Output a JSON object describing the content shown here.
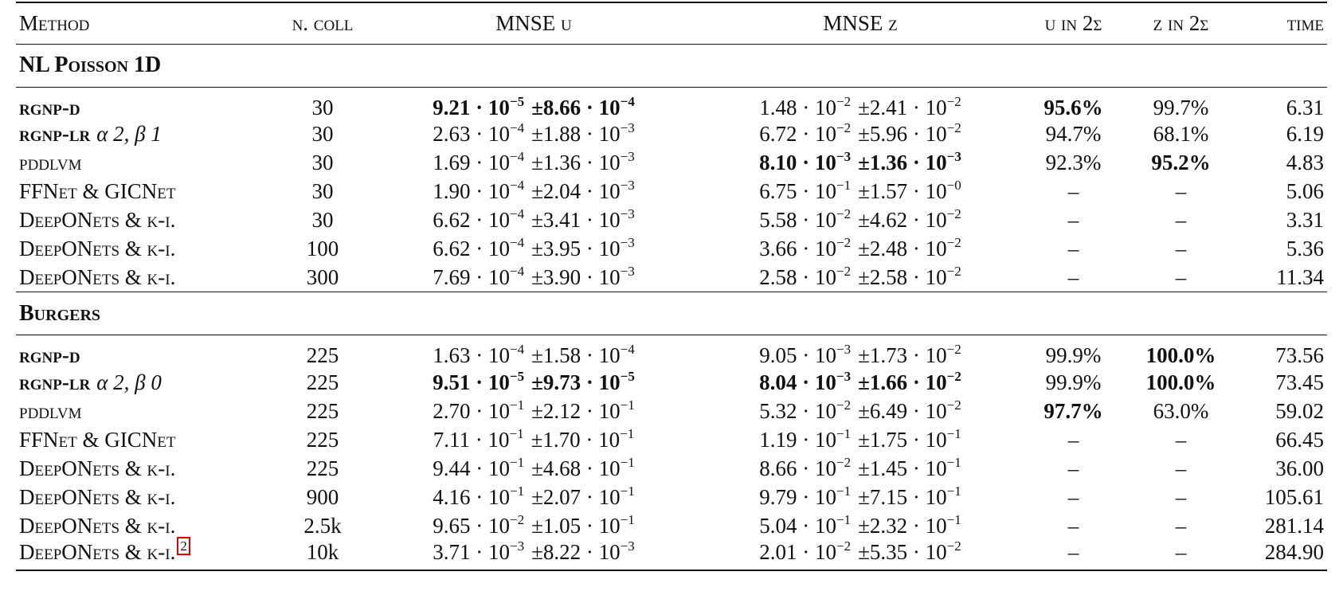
{
  "table": {
    "header": [
      "Method",
      "n. coll",
      "MNSE u",
      "MNSE z",
      "u in 2σ",
      "z in 2σ",
      "time"
    ],
    "sections": [
      {
        "title": "NL Poisson 1D",
        "rows": [
          {
            "method": "rgnp-d",
            "n_coll": "30",
            "mnse_u": [
              "9.21 · 10",
              "−5",
              "±8.66 · 10",
              "−4"
            ],
            "mnse_z": [
              "1.48 · 10",
              "−2",
              "±2.41 · 10",
              "−2"
            ],
            "u_2sigma": "95.6%",
            "z_2sigma": "99.7%",
            "time": "6.31",
            "bold": [
              "method",
              "mnse_u",
              "u_2sigma"
            ]
          },
          {
            "method": "rgnp-lr",
            "params": "α 2, β 1",
            "n_coll": "30",
            "mnse_u": [
              "2.63 · 10",
              "−4",
              "±1.88 · 10",
              "−3"
            ],
            "mnse_z": [
              "6.72 · 10",
              "−2",
              "±5.96 · 10",
              "−2"
            ],
            "u_2sigma": "94.7%",
            "z_2sigma": "68.1%",
            "time": "6.19",
            "bold": [
              "method"
            ]
          },
          {
            "method": "pddlvm",
            "n_coll": "30",
            "mnse_u": [
              "1.69 · 10",
              "−4",
              "±1.36 · 10",
              "−3"
            ],
            "mnse_z": [
              "8.10 · 10",
              "−3",
              "±1.36 · 10",
              "−3"
            ],
            "u_2sigma": "92.3%",
            "z_2sigma": "95.2%",
            "time": "4.83",
            "bold": [
              "mnse_z",
              "z_2sigma"
            ]
          },
          {
            "method": "FFNet & GICNet",
            "n_coll": "30",
            "mnse_u": [
              "1.90 · 10",
              "−4",
              "±2.04 · 10",
              "−3"
            ],
            "mnse_z": [
              "6.75 · 10",
              "−1",
              "±1.57 · 10",
              "−0"
            ],
            "u_2sigma": "–",
            "z_2sigma": "–",
            "time": "5.06",
            "bold": []
          },
          {
            "method": "DeepONets & k-i.",
            "n_coll": "30",
            "mnse_u": [
              "6.62 · 10",
              "−4",
              "±3.41 · 10",
              "−3"
            ],
            "mnse_z": [
              "5.58 · 10",
              "−2",
              "±4.62 · 10",
              "−2"
            ],
            "u_2sigma": "–",
            "z_2sigma": "–",
            "time": "3.31",
            "bold": []
          },
          {
            "method": "DeepONets & k-i.",
            "n_coll": "100",
            "mnse_u": [
              "6.62 · 10",
              "−4",
              "±3.95 · 10",
              "−3"
            ],
            "mnse_z": [
              "3.66 · 10",
              "−2",
              "±2.48 · 10",
              "−2"
            ],
            "u_2sigma": "–",
            "z_2sigma": "–",
            "time": "5.36",
            "bold": []
          },
          {
            "method": "DeepONets & k-i.",
            "n_coll": "300",
            "mnse_u": [
              "7.69 · 10",
              "−4",
              "±3.90 · 10",
              "−3"
            ],
            "mnse_z": [
              "2.58 · 10",
              "−2",
              "±2.58 · 10",
              "−2"
            ],
            "u_2sigma": "–",
            "z_2sigma": "–",
            "time": "11.34",
            "bold": []
          }
        ]
      },
      {
        "title": "Burgers",
        "rows": [
          {
            "method": "rgnp-d",
            "n_coll": "225",
            "mnse_u": [
              "1.63 · 10",
              "−4",
              "±1.58 · 10",
              "−4"
            ],
            "mnse_z": [
              "9.05 · 10",
              "−3",
              "±1.73 · 10",
              "−2"
            ],
            "u_2sigma": "99.9%",
            "z_2sigma": "100.0%",
            "time": "73.56",
            "bold": [
              "method",
              "z_2sigma"
            ]
          },
          {
            "method": "rgnp-lr",
            "params": "α 2, β 0",
            "n_coll": "225",
            "mnse_u": [
              "9.51 · 10",
              "−5",
              "±9.73 · 10",
              "−5"
            ],
            "mnse_z": [
              "8.04 · 10",
              "−3",
              "±1.66 · 10",
              "−2"
            ],
            "u_2sigma": "99.9%",
            "z_2sigma": "100.0%",
            "time": "73.45",
            "bold": [
              "method",
              "mnse_u",
              "mnse_z",
              "z_2sigma"
            ]
          },
          {
            "method": "pddlvm",
            "n_coll": "225",
            "mnse_u": [
              "2.70 · 10",
              "−1",
              "±2.12 · 10",
              "−1"
            ],
            "mnse_z": [
              "5.32 · 10",
              "−2",
              "±6.49 · 10",
              "−2"
            ],
            "u_2sigma": "97.7%",
            "z_2sigma": "63.0%",
            "time": "59.02",
            "bold": [
              "u_2sigma"
            ]
          },
          {
            "method": "FFNet & GICNet",
            "n_coll": "225",
            "mnse_u": [
              "7.11 · 10",
              "−1",
              "±1.70 · 10",
              "−1"
            ],
            "mnse_z": [
              "1.19 · 10",
              "−1",
              "±1.75 · 10",
              "−1"
            ],
            "u_2sigma": "–",
            "z_2sigma": "–",
            "time": "66.45",
            "bold": []
          },
          {
            "method": "DeepONets & k-i.",
            "n_coll": "225",
            "mnse_u": [
              "9.44 · 10",
              "−1",
              "±4.68 · 10",
              "−1"
            ],
            "mnse_z": [
              "8.66 · 10",
              "−2",
              "±1.45 · 10",
              "−1"
            ],
            "u_2sigma": "–",
            "z_2sigma": "–",
            "time": "36.00",
            "bold": []
          },
          {
            "method": "DeepONets & k-i.",
            "n_coll": "900",
            "mnse_u": [
              "4.16 · 10",
              "−1",
              "±2.07 · 10",
              "−1"
            ],
            "mnse_z": [
              "9.79 · 10",
              "−1",
              "±7.15 · 10",
              "−1"
            ],
            "u_2sigma": "–",
            "z_2sigma": "–",
            "time": "105.61",
            "bold": []
          },
          {
            "method": "DeepONets & k-i.",
            "n_coll": "2.5k",
            "mnse_u": [
              "9.65 · 10",
              "−2",
              "±1.05 · 10",
              "−1"
            ],
            "mnse_z": [
              "5.04 · 10",
              "−1",
              "±2.32 · 10",
              "−1"
            ],
            "u_2sigma": "–",
            "z_2sigma": "–",
            "time": "281.14",
            "bold": []
          },
          {
            "method": "DeepONets & k-i.",
            "footnote": "2",
            "n_coll": "10k",
            "mnse_u": [
              "3.71 · 10",
              "−3",
              "±8.22 · 10",
              "−3"
            ],
            "mnse_z": [
              "2.01 · 10",
              "−2",
              "±5.35 · 10",
              "−2"
            ],
            "u_2sigma": "–",
            "z_2sigma": "–",
            "time": "284.90",
            "bold": []
          }
        ]
      }
    ]
  }
}
